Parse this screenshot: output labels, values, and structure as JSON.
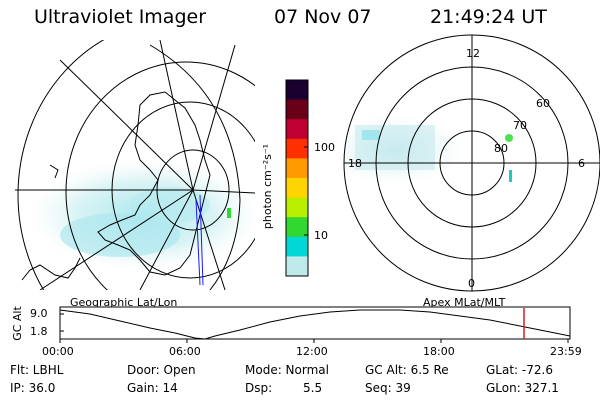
{
  "header": {
    "instrument": "Ultraviolet Imager",
    "date": "07 Nov 07",
    "time": "21:49:24 UT"
  },
  "left_panel": {
    "caption": "Geographic Lat/Lon"
  },
  "right_panel": {
    "caption": "Apex MLat/MLT",
    "mlt_labels": {
      "top": "12",
      "left": "18",
      "right": "6",
      "bottom": "0"
    },
    "lat_labels": [
      "80",
      "70",
      "60"
    ]
  },
  "colorbar": {
    "unit_label": "photon cm⁻²s⁻¹",
    "ticks": [
      "100",
      "10"
    ],
    "colors": [
      "#1a0030",
      "#6a0018",
      "#c00030",
      "#ff3000",
      "#ff9a00",
      "#ffd400",
      "#b8ee00",
      "#30d830",
      "#00d8d8",
      "#bfeaea"
    ]
  },
  "altitude_plot": {
    "axis_label": "GC Alt",
    "y_ticks": [
      "9.0",
      "1.8"
    ],
    "x_ticks": [
      "00:00",
      "06:00",
      "12:00",
      "18:00",
      "23:59"
    ],
    "current_time_marker_color": "#d02020"
  },
  "footer": {
    "flt": "Flt: LBHL",
    "ip": "IP: 36.0",
    "door": "Door: Open",
    "gain": "Gain: 14",
    "mode": "Mode: Normal",
    "dsp_label": "Dsp:",
    "dsp_value": "5.5",
    "gc_alt": "GC Alt: 6.5 Re",
    "seq": "Seq: 39",
    "glat": "GLat: -72.6",
    "glon": "GLon: 327.1"
  }
}
